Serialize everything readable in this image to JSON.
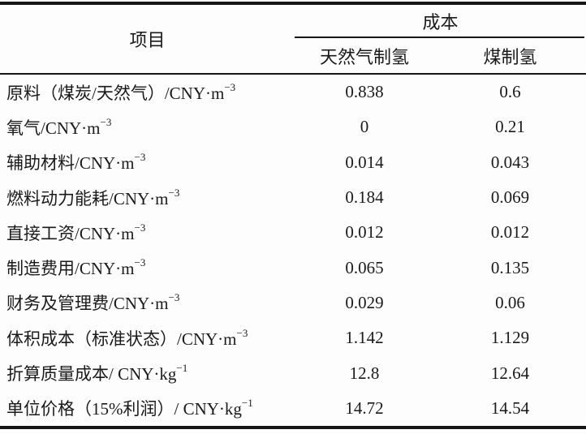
{
  "table": {
    "header": {
      "item": "项目",
      "cost": "成本",
      "col_gas": "天然气制氢",
      "col_coal": "煤制氢"
    },
    "rows": [
      {
        "label": "原料（煤炭/天然气）/CNY·m",
        "sup": "−3",
        "gas": "0.838",
        "coal": "0.6"
      },
      {
        "label": "氧气/CNY·m",
        "sup": "−3",
        "gas": "0",
        "coal": "0.21"
      },
      {
        "label": "辅助材料/CNY·m",
        "sup": "−3",
        "gas": "0.014",
        "coal": "0.043"
      },
      {
        "label": "燃料动力能耗/CNY·m",
        "sup": "−3",
        "gas": "0.184",
        "coal": "0.069"
      },
      {
        "label": "直接工资/CNY·m",
        "sup": "−3",
        "gas": "0.012",
        "coal": "0.012"
      },
      {
        "label": "制造费用/CNY·m",
        "sup": "−3",
        "gas": "0.065",
        "coal": "0.135"
      },
      {
        "label": "财务及管理费/CNY·m",
        "sup": "−3",
        "gas": "0.029",
        "coal": "0.06"
      },
      {
        "label": "体积成本（标准状态）/CNY·m",
        "sup": "−3",
        "gas": "1.142",
        "coal": "1.129"
      },
      {
        "label": "折算质量成本/ CNY·kg",
        "sup": "−1",
        "gas": "12.8",
        "coal": "12.64"
      },
      {
        "label": "单位价格（15%利润）/ CNY·kg",
        "sup": "−1",
        "gas": "14.72",
        "coal": "14.54"
      }
    ]
  },
  "colors": {
    "text": "#1a1a1a",
    "rule": "#161616",
    "background": "#fdfdfd"
  }
}
